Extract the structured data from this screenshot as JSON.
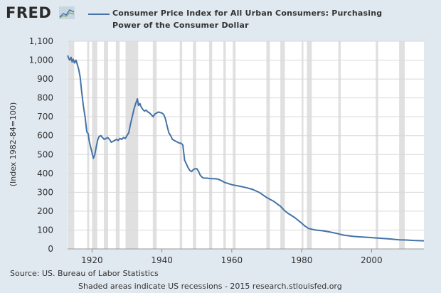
{
  "logo": {
    "text": "FRED"
  },
  "footer": {
    "source": "Source: US. Bureau of Labor Statistics",
    "note": "Shaded areas indicate US recessions - 2015 research.stlouisfed.org"
  },
  "colors": {
    "series": "#4572a7",
    "recession": "#e0e0e0",
    "plot_bg": "#ffffff",
    "page_bg": "#e1e9f0"
  },
  "chart_data": {
    "type": "line",
    "title": "",
    "legend": "Consumer Price Index for All Urban Consumers: Purchasing Power of the Consumer Dollar",
    "legend_position": "top",
    "xlabel": "",
    "ylabel": "(Index 1982-84=100)",
    "xlim": [
      1913,
      2015
    ],
    "ylim": [
      0,
      1100
    ],
    "grid": true,
    "xticks": [
      "1920",
      "1940",
      "1960",
      "1980",
      "2000"
    ],
    "yticks": [
      "0",
      "100",
      "200",
      "300",
      "400",
      "500",
      "600",
      "700",
      "800",
      "900",
      "1,000",
      "1,100"
    ],
    "recessions": [
      [
        1913.1,
        1914.9
      ],
      [
        1918.6,
        1919.2
      ],
      [
        1920.0,
        1921.5
      ],
      [
        1923.4,
        1924.6
      ],
      [
        1926.8,
        1927.9
      ],
      [
        1929.6,
        1933.2
      ],
      [
        1937.4,
        1938.5
      ],
      [
        1945.1,
        1945.8
      ],
      [
        1948.9,
        1949.8
      ],
      [
        1953.5,
        1954.4
      ],
      [
        1957.6,
        1958.3
      ],
      [
        1960.3,
        1961.1
      ],
      [
        1969.9,
        1970.9
      ],
      [
        1973.9,
        1975.2
      ],
      [
        1980.0,
        1980.5
      ],
      [
        1981.5,
        1982.9
      ],
      [
        1990.5,
        1991.2
      ],
      [
        2001.2,
        2001.9
      ],
      [
        2007.9,
        2009.5
      ]
    ],
    "series": [
      {
        "name": "Consumer Price Index for All Urban Consumers: Purchasing Power of the Consumer Dollar",
        "x": [
          1913.0,
          1913.3,
          1913.6,
          1914.0,
          1914.3,
          1914.6,
          1915.0,
          1915.4,
          1915.8,
          1916.2,
          1916.6,
          1917.0,
          1917.5,
          1918.0,
          1918.5,
          1918.9,
          1919.2,
          1919.6,
          1920.0,
          1920.4,
          1920.8,
          1921.2,
          1921.6,
          1922.0,
          1922.5,
          1923.0,
          1923.5,
          1924.0,
          1924.5,
          1925.0,
          1925.5,
          1926.0,
          1926.5,
          1927.0,
          1927.5,
          1928.0,
          1928.5,
          1929.0,
          1929.5,
          1930.0,
          1930.5,
          1931.0,
          1931.5,
          1932.0,
          1932.5,
          1933.0,
          1933.3,
          1933.7,
          1934.0,
          1934.5,
          1935.0,
          1935.5,
          1936.0,
          1936.5,
          1937.0,
          1937.5,
          1938.0,
          1938.5,
          1939.0,
          1939.5,
          1940.0,
          1940.5,
          1941.0,
          1941.5,
          1942.0,
          1942.5,
          1943.0,
          1943.5,
          1944.0,
          1944.5,
          1945.0,
          1945.5,
          1946.0,
          1946.5,
          1947.0,
          1947.5,
          1948.0,
          1948.5,
          1949.0,
          1949.5,
          1950.0,
          1950.5,
          1951.0,
          1951.5,
          1952.0,
          1953.0,
          1954.0,
          1955.0,
          1956.0,
          1957.0,
          1958.0,
          1960.0,
          1962.0,
          1964.0,
          1966.0,
          1968.0,
          1970.0,
          1972.0,
          1974.0,
          1975.0,
          1976.0,
          1978.0,
          1980.0,
          1981.0,
          1982.0,
          1984.0,
          1986.0,
          1988.0,
          1990.0,
          1992.0,
          1995.0,
          2000.0,
          2005.0,
          2008.0,
          2010.0,
          2012.0,
          2015.0
        ],
        "values": [
          1025,
          1010,
          1000,
          1015,
          990,
          1005,
          985,
          1000,
          975,
          950,
          910,
          840,
          760,
          700,
          620,
          610,
          570,
          540,
          510,
          480,
          500,
          540,
          575,
          595,
          600,
          590,
          580,
          585,
          590,
          580,
          565,
          570,
          575,
          580,
          575,
          585,
          580,
          590,
          585,
          600,
          615,
          660,
          700,
          740,
          770,
          795,
          760,
          770,
          755,
          740,
          730,
          735,
          725,
          720,
          710,
          700,
          715,
          720,
          725,
          722,
          720,
          712,
          690,
          650,
          615,
          600,
          580,
          575,
          570,
          565,
          560,
          560,
          550,
          470,
          450,
          430,
          415,
          410,
          420,
          425,
          425,
          410,
          390,
          380,
          375,
          375,
          372,
          372,
          370,
          362,
          352,
          340,
          333,
          325,
          315,
          298,
          272,
          252,
          225,
          205,
          190,
          166,
          136,
          120,
          108,
          100,
          96,
          90,
          82,
          73,
          66,
          60,
          53,
          48,
          47,
          45,
          43
        ]
      }
    ]
  }
}
